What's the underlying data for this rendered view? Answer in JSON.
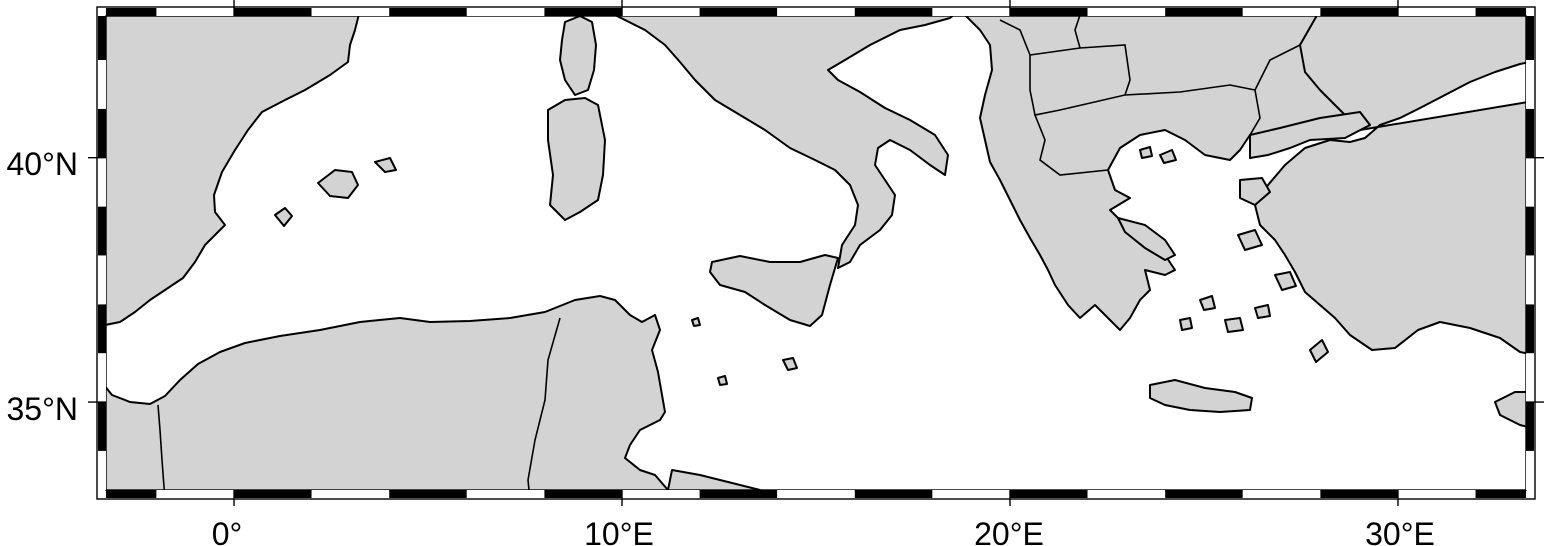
{
  "map": {
    "projection": "cylindrical",
    "lon_range": [
      -3.3,
      33.3
    ],
    "lat_range": [
      33.2,
      42.9
    ],
    "x_ticks": [
      {
        "lon": 0,
        "label": "0°"
      },
      {
        "lon": 10,
        "label": "10°E"
      },
      {
        "lon": 20,
        "label": "20°E"
      },
      {
        "lon": 30,
        "label": "30°E"
      }
    ],
    "y_ticks": [
      {
        "lat": 40,
        "label": "40°N"
      },
      {
        "lat": 35,
        "label": "35°N"
      }
    ],
    "frame_interval_deg": 2,
    "colors": {
      "land": "#d3d3d3",
      "water": "#ffffff",
      "coastline": "#000000",
      "frame_dark": "#000000",
      "frame_light": "#ffffff"
    }
  }
}
